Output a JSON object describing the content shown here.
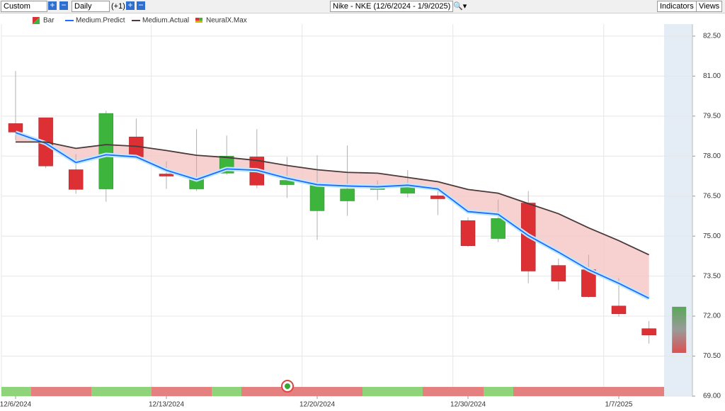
{
  "toolbar": {
    "range": "Custom",
    "period": "Daily",
    "offset": "(+1)",
    "symbol": "Nike - NKE (12/6/2024 - 1/9/2025)",
    "indicators": "Indicators",
    "views": "Views"
  },
  "chart_data": {
    "type": "candlestick",
    "categories": [
      "12/6/2024",
      null,
      null,
      null,
      null,
      "12/13/2024",
      null,
      null,
      null,
      null,
      "12/20/2024",
      null,
      null,
      null,
      null,
      "12/30/2024",
      null,
      null,
      null,
      null,
      "1/7/2025",
      null,
      null
    ],
    "up_color": "#3db53d",
    "down_color": "#dc3035",
    "band_color": "#f6c8c8",
    "series": [
      {
        "name": "Bar",
        "open": [
          79.22,
          79.44,
          77.49,
          76.77,
          78.72,
          77.33,
          76.77,
          77.36,
          77.97,
          76.93,
          75.95,
          76.32,
          76.75,
          76.61,
          76.51,
          75.58,
          74.91,
          76.24,
          73.9,
          73.74,
          72.38,
          71.53,
          null
        ],
        "high": [
          81.19,
          79.44,
          78.08,
          79.7,
          79.41,
          77.81,
          79.01,
          78.77,
          79.01,
          77.97,
          78.03,
          78.4,
          77.09,
          77.47,
          76.77,
          75.7,
          76.37,
          76.69,
          74.16,
          74.3,
          73.42,
          71.82,
          null
        ],
        "low": [
          78.6,
          77.55,
          76.59,
          76.29,
          77.9,
          76.77,
          76.69,
          77.3,
          76.8,
          76.43,
          74.86,
          75.76,
          76.35,
          76.45,
          75.79,
          74.6,
          74.78,
          73.23,
          72.99,
          72.7,
          71.98,
          70.97,
          null
        ],
        "close": [
          78.9,
          77.63,
          76.75,
          79.6,
          77.97,
          77.25,
          77.15,
          78.0,
          76.91,
          77.09,
          76.93,
          76.77,
          76.8,
          76.93,
          76.4,
          74.64,
          75.66,
          73.69,
          73.31,
          72.73,
          72.09,
          71.29,
          null
        ]
      },
      {
        "name": "Medium.Predict",
        "color": "#1f6bff",
        "values": [
          78.88,
          78.48,
          77.76,
          78.05,
          77.97,
          77.47,
          77.12,
          77.52,
          77.47,
          77.17,
          76.93,
          76.88,
          76.85,
          76.91,
          76.77,
          75.92,
          75.82,
          75.02,
          74.4,
          73.74,
          73.23,
          72.67,
          null
        ]
      },
      {
        "name": "Medium.Actual",
        "color": "#4b3a3a",
        "values": [
          78.53,
          78.53,
          78.29,
          78.43,
          78.37,
          78.21,
          78.03,
          77.95,
          77.84,
          77.65,
          77.49,
          77.39,
          77.36,
          77.2,
          77.04,
          76.75,
          76.61,
          76.22,
          75.84,
          75.31,
          74.83,
          74.3,
          null
        ]
      },
      {
        "name": "NeuralX.Max"
      }
    ],
    "forecast_range": [
      70.62,
      72.35
    ],
    "ylim": [
      69,
      82.95
    ],
    "yticks": [
      {
        "value": 69,
        "label": "69.00"
      },
      {
        "value": 70.5,
        "label": "70.50"
      },
      {
        "value": 72,
        "label": "72.00"
      },
      {
        "value": 73.5,
        "label": "73.50"
      },
      {
        "value": 75,
        "label": "75.00"
      },
      {
        "value": 76.5,
        "label": "76.50"
      },
      {
        "value": 78,
        "label": "78.00"
      },
      {
        "value": 79.5,
        "label": "79.50"
      },
      {
        "value": 81,
        "label": "81.00"
      },
      {
        "value": 82.5,
        "label": "82.50"
      }
    ],
    "grid": true
  }
}
